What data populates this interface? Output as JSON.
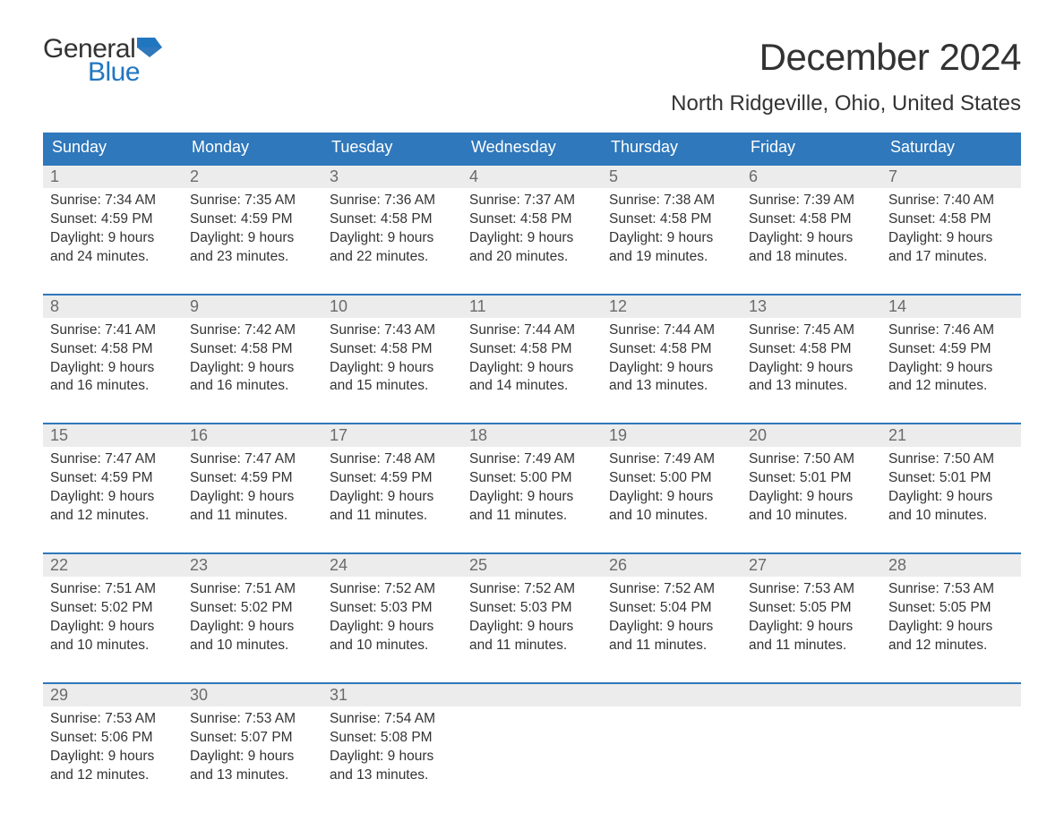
{
  "logo": {
    "general": "General",
    "blue": "Blue",
    "icon_color": "#2176c0"
  },
  "title": "December 2024",
  "location": "North Ridgeville, Ohio, United States",
  "colors": {
    "header_bg": "#2f78bb",
    "header_text": "#ffffff",
    "daynum_bg": "#ececec",
    "daynum_text": "#6b6b6b",
    "body_text": "#333333",
    "week_border": "#2f78bb",
    "page_bg": "#ffffff",
    "logo_blue": "#2176c0"
  },
  "typography": {
    "title_fontsize": 42,
    "location_fontsize": 24,
    "header_fontsize": 18,
    "daynum_fontsize": 18,
    "body_fontsize": 15.5,
    "font_family": "Arial"
  },
  "day_headers": [
    "Sunday",
    "Monday",
    "Tuesday",
    "Wednesday",
    "Thursday",
    "Friday",
    "Saturday"
  ],
  "weeks": [
    [
      {
        "n": "1",
        "sr": "Sunrise: 7:34 AM",
        "ss": "Sunset: 4:59 PM",
        "d1": "Daylight: 9 hours",
        "d2": "and 24 minutes."
      },
      {
        "n": "2",
        "sr": "Sunrise: 7:35 AM",
        "ss": "Sunset: 4:59 PM",
        "d1": "Daylight: 9 hours",
        "d2": "and 23 minutes."
      },
      {
        "n": "3",
        "sr": "Sunrise: 7:36 AM",
        "ss": "Sunset: 4:58 PM",
        "d1": "Daylight: 9 hours",
        "d2": "and 22 minutes."
      },
      {
        "n": "4",
        "sr": "Sunrise: 7:37 AM",
        "ss": "Sunset: 4:58 PM",
        "d1": "Daylight: 9 hours",
        "d2": "and 20 minutes."
      },
      {
        "n": "5",
        "sr": "Sunrise: 7:38 AM",
        "ss": "Sunset: 4:58 PM",
        "d1": "Daylight: 9 hours",
        "d2": "and 19 minutes."
      },
      {
        "n": "6",
        "sr": "Sunrise: 7:39 AM",
        "ss": "Sunset: 4:58 PM",
        "d1": "Daylight: 9 hours",
        "d2": "and 18 minutes."
      },
      {
        "n": "7",
        "sr": "Sunrise: 7:40 AM",
        "ss": "Sunset: 4:58 PM",
        "d1": "Daylight: 9 hours",
        "d2": "and 17 minutes."
      }
    ],
    [
      {
        "n": "8",
        "sr": "Sunrise: 7:41 AM",
        "ss": "Sunset: 4:58 PM",
        "d1": "Daylight: 9 hours",
        "d2": "and 16 minutes."
      },
      {
        "n": "9",
        "sr": "Sunrise: 7:42 AM",
        "ss": "Sunset: 4:58 PM",
        "d1": "Daylight: 9 hours",
        "d2": "and 16 minutes."
      },
      {
        "n": "10",
        "sr": "Sunrise: 7:43 AM",
        "ss": "Sunset: 4:58 PM",
        "d1": "Daylight: 9 hours",
        "d2": "and 15 minutes."
      },
      {
        "n": "11",
        "sr": "Sunrise: 7:44 AM",
        "ss": "Sunset: 4:58 PM",
        "d1": "Daylight: 9 hours",
        "d2": "and 14 minutes."
      },
      {
        "n": "12",
        "sr": "Sunrise: 7:44 AM",
        "ss": "Sunset: 4:58 PM",
        "d1": "Daylight: 9 hours",
        "d2": "and 13 minutes."
      },
      {
        "n": "13",
        "sr": "Sunrise: 7:45 AM",
        "ss": "Sunset: 4:58 PM",
        "d1": "Daylight: 9 hours",
        "d2": "and 13 minutes."
      },
      {
        "n": "14",
        "sr": "Sunrise: 7:46 AM",
        "ss": "Sunset: 4:59 PM",
        "d1": "Daylight: 9 hours",
        "d2": "and 12 minutes."
      }
    ],
    [
      {
        "n": "15",
        "sr": "Sunrise: 7:47 AM",
        "ss": "Sunset: 4:59 PM",
        "d1": "Daylight: 9 hours",
        "d2": "and 12 minutes."
      },
      {
        "n": "16",
        "sr": "Sunrise: 7:47 AM",
        "ss": "Sunset: 4:59 PM",
        "d1": "Daylight: 9 hours",
        "d2": "and 11 minutes."
      },
      {
        "n": "17",
        "sr": "Sunrise: 7:48 AM",
        "ss": "Sunset: 4:59 PM",
        "d1": "Daylight: 9 hours",
        "d2": "and 11 minutes."
      },
      {
        "n": "18",
        "sr": "Sunrise: 7:49 AM",
        "ss": "Sunset: 5:00 PM",
        "d1": "Daylight: 9 hours",
        "d2": "and 11 minutes."
      },
      {
        "n": "19",
        "sr": "Sunrise: 7:49 AM",
        "ss": "Sunset: 5:00 PM",
        "d1": "Daylight: 9 hours",
        "d2": "and 10 minutes."
      },
      {
        "n": "20",
        "sr": "Sunrise: 7:50 AM",
        "ss": "Sunset: 5:01 PM",
        "d1": "Daylight: 9 hours",
        "d2": "and 10 minutes."
      },
      {
        "n": "21",
        "sr": "Sunrise: 7:50 AM",
        "ss": "Sunset: 5:01 PM",
        "d1": "Daylight: 9 hours",
        "d2": "and 10 minutes."
      }
    ],
    [
      {
        "n": "22",
        "sr": "Sunrise: 7:51 AM",
        "ss": "Sunset: 5:02 PM",
        "d1": "Daylight: 9 hours",
        "d2": "and 10 minutes."
      },
      {
        "n": "23",
        "sr": "Sunrise: 7:51 AM",
        "ss": "Sunset: 5:02 PM",
        "d1": "Daylight: 9 hours",
        "d2": "and 10 minutes."
      },
      {
        "n": "24",
        "sr": "Sunrise: 7:52 AM",
        "ss": "Sunset: 5:03 PM",
        "d1": "Daylight: 9 hours",
        "d2": "and 10 minutes."
      },
      {
        "n": "25",
        "sr": "Sunrise: 7:52 AM",
        "ss": "Sunset: 5:03 PM",
        "d1": "Daylight: 9 hours",
        "d2": "and 11 minutes."
      },
      {
        "n": "26",
        "sr": "Sunrise: 7:52 AM",
        "ss": "Sunset: 5:04 PM",
        "d1": "Daylight: 9 hours",
        "d2": "and 11 minutes."
      },
      {
        "n": "27",
        "sr": "Sunrise: 7:53 AM",
        "ss": "Sunset: 5:05 PM",
        "d1": "Daylight: 9 hours",
        "d2": "and 11 minutes."
      },
      {
        "n": "28",
        "sr": "Sunrise: 7:53 AM",
        "ss": "Sunset: 5:05 PM",
        "d1": "Daylight: 9 hours",
        "d2": "and 12 minutes."
      }
    ],
    [
      {
        "n": "29",
        "sr": "Sunrise: 7:53 AM",
        "ss": "Sunset: 5:06 PM",
        "d1": "Daylight: 9 hours",
        "d2": "and 12 minutes."
      },
      {
        "n": "30",
        "sr": "Sunrise: 7:53 AM",
        "ss": "Sunset: 5:07 PM",
        "d1": "Daylight: 9 hours",
        "d2": "and 13 minutes."
      },
      {
        "n": "31",
        "sr": "Sunrise: 7:54 AM",
        "ss": "Sunset: 5:08 PM",
        "d1": "Daylight: 9 hours",
        "d2": "and 13 minutes."
      },
      {
        "empty": true
      },
      {
        "empty": true
      },
      {
        "empty": true
      },
      {
        "empty": true
      }
    ]
  ]
}
